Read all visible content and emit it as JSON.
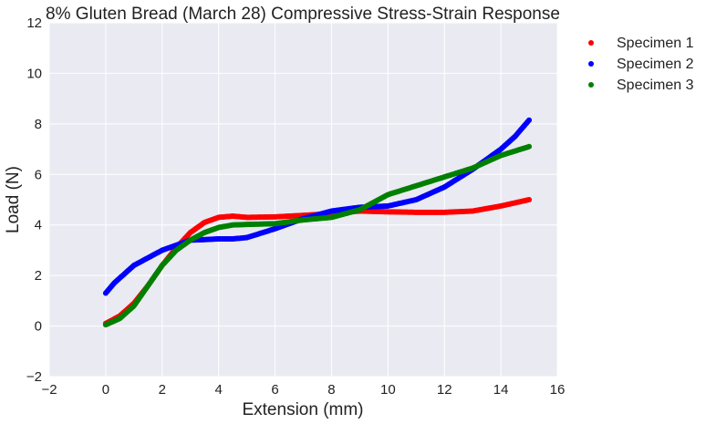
{
  "chart_data": {
    "type": "scatter",
    "title": "8% Gluten Bread (March 28) Compressive Stress-Strain Response",
    "xlabel": "Extension (mm)",
    "ylabel": "Load (N)",
    "xlim": [
      -2,
      16
    ],
    "ylim": [
      -2,
      12
    ],
    "xticks": [
      -2,
      0,
      2,
      4,
      6,
      8,
      10,
      12,
      14,
      16
    ],
    "yticks": [
      -2,
      0,
      2,
      4,
      6,
      8,
      10,
      12
    ],
    "xtick_labels": [
      "−2",
      "0",
      "2",
      "4",
      "6",
      "8",
      "10",
      "12",
      "14",
      "16"
    ],
    "ytick_labels": [
      "−2",
      "0",
      "2",
      "4",
      "6",
      "8",
      "10",
      "12"
    ],
    "grid": true,
    "legend_position": "outside-top-right",
    "series": [
      {
        "name": "Specimen 1",
        "color": "#ff0000",
        "points": [
          [
            0,
            0.1
          ],
          [
            0.5,
            0.4
          ],
          [
            1,
            0.9
          ],
          [
            1.5,
            1.6
          ],
          [
            2,
            2.4
          ],
          [
            2.5,
            3.1
          ],
          [
            3,
            3.7
          ],
          [
            3.5,
            4.1
          ],
          [
            4,
            4.3
          ],
          [
            4.5,
            4.35
          ],
          [
            5,
            4.3
          ],
          [
            6,
            4.32
          ],
          [
            7,
            4.38
          ],
          [
            8,
            4.45
          ],
          [
            9,
            4.55
          ],
          [
            10,
            4.52
          ],
          [
            11,
            4.5
          ],
          [
            12,
            4.5
          ],
          [
            13,
            4.55
          ],
          [
            14,
            4.75
          ],
          [
            15,
            5.0
          ]
        ]
      },
      {
        "name": "Specimen 2",
        "color": "#0000ff",
        "points": [
          [
            0,
            1.3
          ],
          [
            0.3,
            1.7
          ],
          [
            0.7,
            2.1
          ],
          [
            1,
            2.4
          ],
          [
            1.5,
            2.7
          ],
          [
            2,
            3.0
          ],
          [
            2.5,
            3.2
          ],
          [
            3,
            3.4
          ],
          [
            3.5,
            3.42
          ],
          [
            4,
            3.45
          ],
          [
            4.5,
            3.45
          ],
          [
            5,
            3.5
          ],
          [
            6,
            3.85
          ],
          [
            7,
            4.25
          ],
          [
            8,
            4.55
          ],
          [
            9,
            4.7
          ],
          [
            10,
            4.75
          ],
          [
            11,
            5.0
          ],
          [
            12,
            5.5
          ],
          [
            13,
            6.2
          ],
          [
            14,
            7.0
          ],
          [
            14.5,
            7.5
          ],
          [
            15,
            8.15
          ]
        ]
      },
      {
        "name": "Specimen 3",
        "color": "#008000",
        "points": [
          [
            0,
            0.05
          ],
          [
            0.5,
            0.3
          ],
          [
            1,
            0.8
          ],
          [
            1.5,
            1.6
          ],
          [
            2,
            2.4
          ],
          [
            2.5,
            3.0
          ],
          [
            3,
            3.4
          ],
          [
            3.5,
            3.7
          ],
          [
            4,
            3.9
          ],
          [
            4.5,
            4.0
          ],
          [
            5,
            4.02
          ],
          [
            6,
            4.05
          ],
          [
            7,
            4.2
          ],
          [
            8,
            4.3
          ],
          [
            9,
            4.6
          ],
          [
            10,
            5.2
          ],
          [
            11,
            5.55
          ],
          [
            12,
            5.9
          ],
          [
            13,
            6.25
          ],
          [
            14,
            6.75
          ],
          [
            15,
            7.1
          ]
        ]
      }
    ]
  }
}
